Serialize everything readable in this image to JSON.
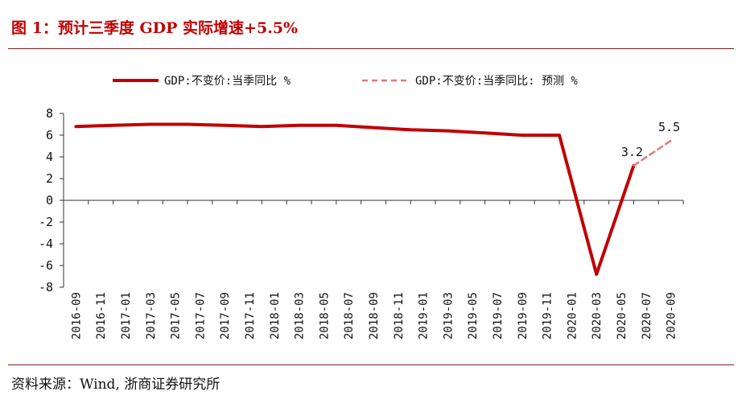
{
  "title": "图 1：预计三季度 GDP 实际增速+5.5%",
  "source": "资料来源：Wind, 浙商证券研究所",
  "colors": {
    "accent": "#c00000",
    "line": "#c00000",
    "forecast": "#e07a7a"
  },
  "chart_data": {
    "type": "line",
    "title": "",
    "xlabel": "",
    "ylabel": "",
    "ylim": [
      -8,
      8
    ],
    "yticks": [
      8,
      6,
      4,
      2,
      0,
      -2,
      -4,
      -6,
      -8
    ],
    "grid": false,
    "legend_position": "top",
    "x_tick_labels": [
      "2016-09",
      "2016-11",
      "2017-01",
      "2017-03",
      "2017-05",
      "2017-07",
      "2017-09",
      "2017-11",
      "2018-01",
      "2018-03",
      "2018-05",
      "2018-07",
      "2018-09",
      "2018-11",
      "2019-01",
      "2019-03",
      "2019-05",
      "2019-07",
      "2019-09",
      "2019-11",
      "2020-01",
      "2020-03",
      "2020-05",
      "2020-07",
      "2020-09"
    ],
    "series": [
      {
        "name": "GDP:不变价:当季同比 %",
        "style": "solid",
        "x": [
          "2016-09",
          "2016-12",
          "2017-03",
          "2017-06",
          "2017-09",
          "2017-12",
          "2018-03",
          "2018-06",
          "2018-09",
          "2018-12",
          "2019-03",
          "2019-06",
          "2019-09",
          "2019-12",
          "2020-03",
          "2020-06"
        ],
        "values": [
          6.8,
          6.9,
          7.0,
          7.0,
          6.9,
          6.8,
          6.9,
          6.9,
          6.7,
          6.5,
          6.4,
          6.2,
          6.0,
          6.0,
          -6.8,
          3.2
        ]
      },
      {
        "name": "GDP:不变价:当季同比: 预测 %",
        "style": "dashed",
        "x": [
          "2020-06",
          "2020-09"
        ],
        "values": [
          3.2,
          5.5
        ]
      }
    ],
    "annotations": [
      {
        "x": "2020-06",
        "y": 3.2,
        "text": "3.2"
      },
      {
        "x": "2020-09",
        "y": 5.5,
        "text": "5.5"
      }
    ]
  }
}
